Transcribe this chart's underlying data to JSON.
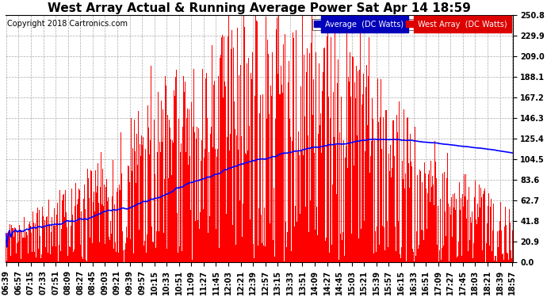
{
  "title": "West Array Actual & Running Average Power Sat Apr 14 18:59",
  "copyright": "Copyright 2018 Cartronics.com",
  "ylim": [
    0.0,
    250.8
  ],
  "yticks": [
    0.0,
    20.9,
    41.8,
    62.7,
    83.6,
    104.5,
    125.4,
    146.3,
    167.2,
    188.1,
    209.0,
    229.9,
    250.8
  ],
  "legend_avg_label": "Average  (DC Watts)",
  "legend_west_label": "West Array  (DC Watts)",
  "legend_avg_bg": "#0000bb",
  "legend_west_bg": "#dd0000",
  "bg_color": "#ffffff",
  "plot_bg": "#ffffff",
  "grid_color": "#aaaaaa",
  "bar_color": "#ff0000",
  "avg_line_color": "#0000ff",
  "title_fontsize": 11,
  "tick_fontsize": 7,
  "copyright_fontsize": 7,
  "xtick_labels": [
    "06:39",
    "06:57",
    "07:15",
    "07:33",
    "07:51",
    "08:09",
    "08:27",
    "08:45",
    "09:03",
    "09:21",
    "09:39",
    "09:57",
    "10:15",
    "10:33",
    "10:51",
    "11:09",
    "11:27",
    "11:45",
    "12:03",
    "12:21",
    "12:39",
    "12:57",
    "13:15",
    "13:33",
    "13:51",
    "14:09",
    "14:27",
    "14:45",
    "15:03",
    "15:21",
    "15:39",
    "15:57",
    "16:15",
    "16:33",
    "16:51",
    "17:09",
    "17:27",
    "17:45",
    "18:03",
    "18:21",
    "18:39",
    "18:57"
  ]
}
